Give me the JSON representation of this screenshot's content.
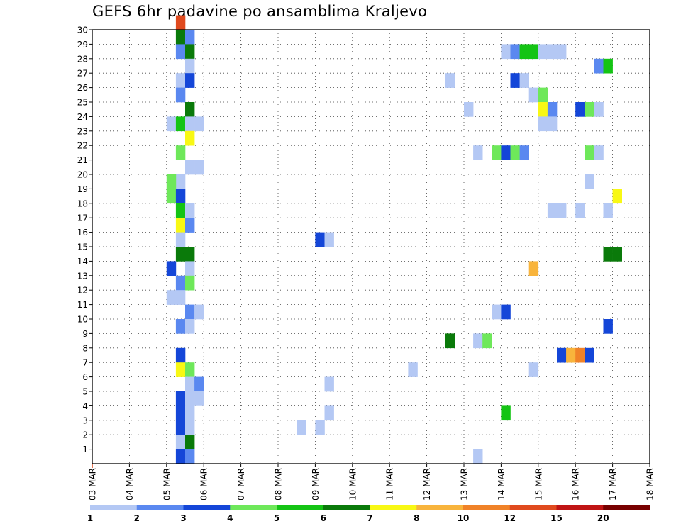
{
  "chart_data": {
    "type": "heatmap",
    "title": "GEFS 6hr padavine po ansamblima Kraljevo",
    "xlabel": "",
    "ylabel": "",
    "x_tick_labels": [
      "03 MAR",
      "04 MAR",
      "05 MAR",
      "06 MAR",
      "07 MAR",
      "08 MAR",
      "09 MAR",
      "10 MAR",
      "11 MAR",
      "12 MAR",
      "13 MAR",
      "14 MAR",
      "15 MAR",
      "16 MAR",
      "17 MAR",
      "18 MAR"
    ],
    "xlim_steps": [
      0,
      60
    ],
    "ylim": [
      0,
      30
    ],
    "y_tick_labels": [
      "1",
      "2",
      "3",
      "4",
      "5",
      "6",
      "7",
      "8",
      "9",
      "10",
      "11",
      "12",
      "13",
      "14",
      "15",
      "16",
      "17",
      "18",
      "19",
      "20",
      "21",
      "22",
      "23",
      "24",
      "25",
      "26",
      "27",
      "28",
      "29",
      "30"
    ],
    "grid": true,
    "colorbar": {
      "levels": [
        "1",
        "2",
        "3",
        "4",
        "5",
        "6",
        "7",
        "8",
        "10",
        "12",
        "15",
        "20"
      ],
      "colors": [
        "#b4c8f4",
        "#5a88f0",
        "#1446d8",
        "#6ee85a",
        "#14c414",
        "#0a7a0a",
        "#f8f814",
        "#f8b43c",
        "#f08228",
        "#e04a1e",
        "#c01414",
        "#780000"
      ]
    },
    "color_classes": {
      "c1": "#b4c8f4",
      "c2": "#5a88f0",
      "c3": "#1446d8",
      "c4": "#6ee85a",
      "c5": "#14c414",
      "c6": "#0a7a0a",
      "c7": "#f8f814",
      "c8": "#f8b43c",
      "c10": "#f08228",
      "c12": "#e04a1e",
      "c15": "#c01414",
      "c20": "#780000"
    },
    "cells": [
      {
        "s": 9,
        "m": 30,
        "c": "c12"
      },
      {
        "s": 9,
        "m": 29,
        "c": "c6"
      },
      {
        "s": 10,
        "m": 29,
        "c": "c2"
      },
      {
        "s": 9,
        "m": 28,
        "c": "c2"
      },
      {
        "s": 10,
        "m": 28,
        "c": "c6"
      },
      {
        "s": 10,
        "m": 27,
        "c": "c1"
      },
      {
        "s": 9,
        "m": 26,
        "c": "c1"
      },
      {
        "s": 10,
        "m": 26,
        "c": "c3"
      },
      {
        "s": 9,
        "m": 25,
        "c": "c2"
      },
      {
        "s": 10,
        "m": 24,
        "c": "c6"
      },
      {
        "s": 8,
        "m": 23,
        "c": "c1"
      },
      {
        "s": 9,
        "m": 23,
        "c": "c5"
      },
      {
        "s": 10,
        "m": 23,
        "c": "c1"
      },
      {
        "s": 11,
        "m": 23,
        "c": "c1"
      },
      {
        "s": 10,
        "m": 22,
        "c": "c7"
      },
      {
        "s": 9,
        "m": 21,
        "c": "c4"
      },
      {
        "s": 10,
        "m": 20,
        "c": "c1"
      },
      {
        "s": 11,
        "m": 20,
        "c": "c1"
      },
      {
        "s": 9,
        "m": 19,
        "c": "c1"
      },
      {
        "s": 8,
        "m": 19,
        "c": "c4"
      },
      {
        "s": 8,
        "m": 18,
        "c": "c4"
      },
      {
        "s": 9,
        "m": 18,
        "c": "c3"
      },
      {
        "s": 9,
        "m": 17,
        "c": "c5"
      },
      {
        "s": 10,
        "m": 17,
        "c": "c1"
      },
      {
        "s": 9,
        "m": 16,
        "c": "c7"
      },
      {
        "s": 10,
        "m": 16,
        "c": "c2"
      },
      {
        "s": 9,
        "m": 15,
        "c": "c1"
      },
      {
        "s": 9,
        "m": 14,
        "c": "c6"
      },
      {
        "s": 10,
        "m": 14,
        "c": "c6"
      },
      {
        "s": 8,
        "m": 13,
        "c": "c3"
      },
      {
        "s": 10,
        "m": 13,
        "c": "c1"
      },
      {
        "s": 9,
        "m": 12,
        "c": "c2"
      },
      {
        "s": 10,
        "m": 12,
        "c": "c4"
      },
      {
        "s": 8,
        "m": 11,
        "c": "c1"
      },
      {
        "s": 9,
        "m": 11,
        "c": "c1"
      },
      {
        "s": 10,
        "m": 10,
        "c": "c2"
      },
      {
        "s": 11,
        "m": 10,
        "c": "c1"
      },
      {
        "s": 9,
        "m": 9,
        "c": "c2"
      },
      {
        "s": 10,
        "m": 9,
        "c": "c1"
      },
      {
        "s": 9,
        "m": 7,
        "c": "c3"
      },
      {
        "s": 9,
        "m": 6,
        "c": "c7"
      },
      {
        "s": 10,
        "m": 6,
        "c": "c4"
      },
      {
        "s": 10,
        "m": 5,
        "c": "c1"
      },
      {
        "s": 11,
        "m": 5,
        "c": "c2"
      },
      {
        "s": 9,
        "m": 4,
        "c": "c3"
      },
      {
        "s": 10,
        "m": 4,
        "c": "c1"
      },
      {
        "s": 11,
        "m": 4,
        "c": "c1"
      },
      {
        "s": 9,
        "m": 3,
        "c": "c3"
      },
      {
        "s": 10,
        "m": 3,
        "c": "c1"
      },
      {
        "s": 9,
        "m": 2,
        "c": "c3"
      },
      {
        "s": 10,
        "m": 2,
        "c": "c1"
      },
      {
        "s": 9,
        "m": 1,
        "c": "c1"
      },
      {
        "s": 10,
        "m": 1,
        "c": "c6"
      },
      {
        "s": 9,
        "m": 0,
        "c": "c3"
      },
      {
        "s": 10,
        "m": 0,
        "c": "c2"
      },
      {
        "s": 24,
        "m": 15,
        "c": "c3"
      },
      {
        "s": 25,
        "m": 15,
        "c": "c1"
      },
      {
        "s": 24,
        "m": 2,
        "c": "c1"
      },
      {
        "s": 22,
        "m": 2,
        "c": "c1"
      },
      {
        "s": 25,
        "m": 5,
        "c": "c1"
      },
      {
        "s": 25,
        "m": 3,
        "c": "c1"
      },
      {
        "s": 34,
        "m": 6,
        "c": "c1"
      },
      {
        "s": 38,
        "m": 26,
        "c": "c1"
      },
      {
        "s": 38,
        "m": 8,
        "c": "c6"
      },
      {
        "s": 40,
        "m": 24,
        "c": "c1"
      },
      {
        "s": 41,
        "m": 21,
        "c": "c1"
      },
      {
        "s": 41,
        "m": 8,
        "c": "c1"
      },
      {
        "s": 42,
        "m": 8,
        "c": "c4"
      },
      {
        "s": 41,
        "m": 0,
        "c": "c1"
      },
      {
        "s": 43,
        "m": 21,
        "c": "c4"
      },
      {
        "s": 44,
        "m": 21,
        "c": "c3"
      },
      {
        "s": 45,
        "m": 21,
        "c": "c4"
      },
      {
        "s": 46,
        "m": 21,
        "c": "c2"
      },
      {
        "s": 43,
        "m": 10,
        "c": "c1"
      },
      {
        "s": 44,
        "m": 10,
        "c": "c3"
      },
      {
        "s": 44,
        "m": 3,
        "c": "c5"
      },
      {
        "s": 44,
        "m": 28,
        "c": "c1"
      },
      {
        "s": 45,
        "m": 28,
        "c": "c2"
      },
      {
        "s": 46,
        "m": 28,
        "c": "c5"
      },
      {
        "s": 47,
        "m": 28,
        "c": "c5"
      },
      {
        "s": 48,
        "m": 28,
        "c": "c1"
      },
      {
        "s": 49,
        "m": 28,
        "c": "c1"
      },
      {
        "s": 50,
        "m": 28,
        "c": "c1"
      },
      {
        "s": 45,
        "m": 26,
        "c": "c3"
      },
      {
        "s": 46,
        "m": 26,
        "c": "c1"
      },
      {
        "s": 47,
        "m": 25,
        "c": "c1"
      },
      {
        "s": 48,
        "m": 25,
        "c": "c4"
      },
      {
        "s": 48,
        "m": 24,
        "c": "c7"
      },
      {
        "s": 49,
        "m": 24,
        "c": "c2"
      },
      {
        "s": 48,
        "m": 23,
        "c": "c1"
      },
      {
        "s": 49,
        "m": 23,
        "c": "c1"
      },
      {
        "s": 47,
        "m": 13,
        "c": "c8"
      },
      {
        "s": 47,
        "m": 6,
        "c": "c1"
      },
      {
        "s": 49,
        "m": 17,
        "c": "c1"
      },
      {
        "s": 50,
        "m": 17,
        "c": "c1"
      },
      {
        "s": 50,
        "m": 7,
        "c": "c3"
      },
      {
        "s": 51,
        "m": 7,
        "c": "c8"
      },
      {
        "s": 52,
        "m": 7,
        "c": "c10"
      },
      {
        "s": 53,
        "m": 7,
        "c": "c3"
      },
      {
        "s": 52,
        "m": 24,
        "c": "c3"
      },
      {
        "s": 53,
        "m": 24,
        "c": "c4"
      },
      {
        "s": 54,
        "m": 24,
        "c": "c1"
      },
      {
        "s": 52,
        "m": 17,
        "c": "c1"
      },
      {
        "s": 53,
        "m": 21,
        "c": "c4"
      },
      {
        "s": 54,
        "m": 21,
        "c": "c1"
      },
      {
        "s": 53,
        "m": 19,
        "c": "c1"
      },
      {
        "s": 54,
        "m": 27,
        "c": "c2"
      },
      {
        "s": 55,
        "m": 27,
        "c": "c5"
      },
      {
        "s": 55,
        "m": 17,
        "c": "c1"
      },
      {
        "s": 55,
        "m": 14,
        "c": "c6"
      },
      {
        "s": 56,
        "m": 14,
        "c": "c6"
      },
      {
        "s": 55,
        "m": 9,
        "c": "c3"
      },
      {
        "s": 56,
        "m": 18,
        "c": "c7"
      }
    ]
  }
}
